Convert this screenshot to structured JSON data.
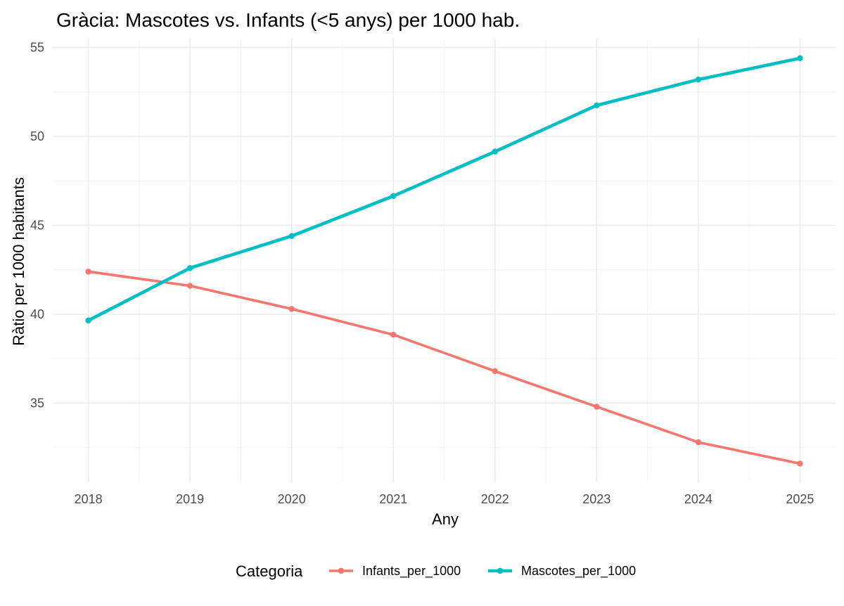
{
  "chart_data": {
    "type": "line",
    "title": "Gràcia: Mascotes vs. Infants (<5 anys) per 1000 hab.",
    "xlabel": "Any",
    "ylabel": "Ràtio per 1000 habitants",
    "x": [
      2018,
      2019,
      2020,
      2021,
      2022,
      2023,
      2024,
      2025
    ],
    "x_tick_labels": [
      "2018",
      "2019",
      "2020",
      "2021",
      "2022",
      "2023",
      "2024",
      "2025"
    ],
    "y_ticks": [
      35,
      40,
      45,
      50,
      55
    ],
    "y_tick_labels": [
      "35",
      "40",
      "45",
      "50",
      "55"
    ],
    "xlim": [
      2017.65,
      2025.35
    ],
    "ylim": [
      30.55,
      55.5
    ],
    "grid": true,
    "legend_position": "bottom",
    "legend_title": "Categoria",
    "series": [
      {
        "name": "Infants_per_1000",
        "color": "#F8766D",
        "values": [
          42.4,
          41.6,
          40.3,
          38.85,
          36.8,
          34.8,
          32.8,
          31.6
        ]
      },
      {
        "name": "Mascotes_per_1000",
        "color": "#00BFC4",
        "values": [
          39.65,
          42.6,
          44.4,
          46.65,
          49.15,
          51.75,
          53.2,
          54.4
        ]
      }
    ]
  }
}
